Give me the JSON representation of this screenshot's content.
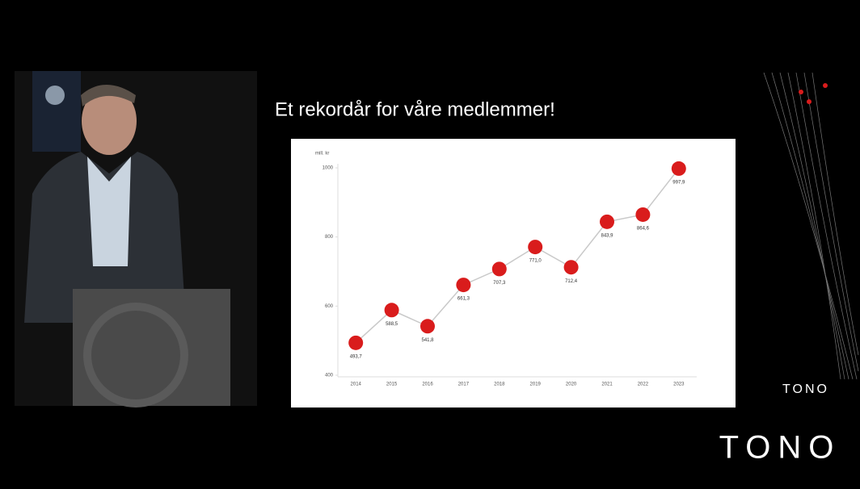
{
  "chart_data": {
    "type": "line",
    "title": "Et rekordår for våre medlemmer!",
    "y_label": "mill. kr",
    "categories": [
      "2014",
      "2015",
      "2016",
      "2017",
      "2018",
      "2019",
      "2020",
      "2021",
      "2022",
      "2023"
    ],
    "values": [
      493.7,
      588.5,
      541.8,
      661.3,
      707.3,
      771.0,
      712.4,
      843.9,
      864.6,
      997.9
    ],
    "value_labels": [
      "493,7",
      "588,5",
      "541,8",
      "661,3",
      "707,3",
      "771,0",
      "712,4",
      "843,9",
      "864,6",
      "997,9"
    ],
    "color": "#d91c1c",
    "line_color": "#c9c9c9",
    "ylim": [
      400,
      1000
    ],
    "yticks": [
      400,
      600,
      800,
      1000
    ],
    "grid": false
  },
  "slide": {
    "logo": "TONO",
    "corner_logo": "TONO"
  }
}
